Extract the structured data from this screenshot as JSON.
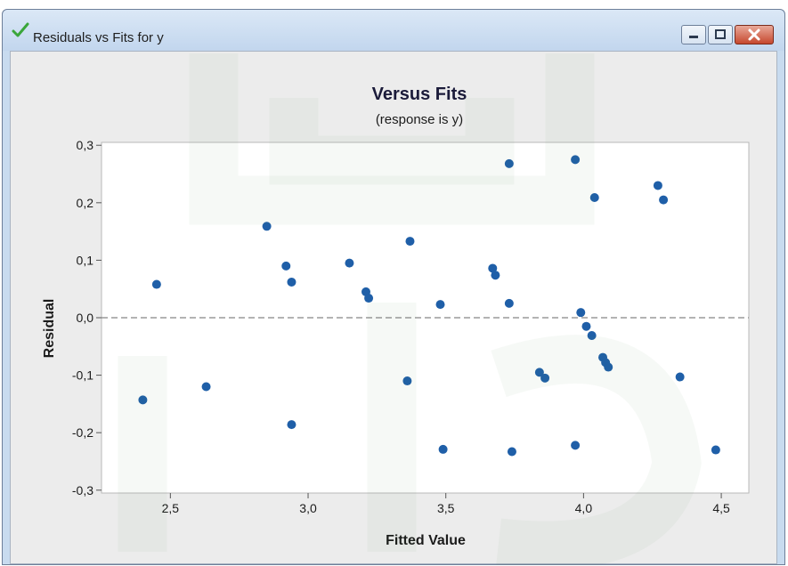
{
  "window": {
    "title": "Residuals vs Fits for y",
    "title_icon": "checkmark-icon",
    "buttons": [
      "minimize-icon",
      "maximize-icon",
      "close-icon"
    ]
  },
  "colors": {
    "points": "#1f5fa8",
    "zero_line": "#9a9a9a",
    "plot_bg": "#ffffff",
    "panel_bg": "#ececec"
  },
  "chart_data": {
    "type": "scatter",
    "title": "Versus Fits",
    "subtitle": "(response is y)",
    "xlabel": "Fitted Value",
    "ylabel": "Residual",
    "xlim": [
      2.25,
      4.6
    ],
    "ylim": [
      -0.305,
      0.305
    ],
    "xticks": [
      "2,5",
      "3,0",
      "3,5",
      "4,0",
      "4,5"
    ],
    "xtick_values": [
      2.5,
      3.0,
      3.5,
      4.0,
      4.5
    ],
    "yticks": [
      "0,3",
      "0,2",
      "0,1",
      "0,0",
      "-0,1",
      "-0,2",
      "-0,3"
    ],
    "ytick_values": [
      0.3,
      0.2,
      0.1,
      0.0,
      -0.1,
      -0.2,
      -0.3
    ],
    "reference_line": 0.0,
    "grid": false,
    "points": [
      {
        "x": 2.4,
        "y": -0.143
      },
      {
        "x": 2.45,
        "y": 0.058
      },
      {
        "x": 2.63,
        "y": -0.12
      },
      {
        "x": 2.85,
        "y": 0.159
      },
      {
        "x": 2.92,
        "y": 0.09
      },
      {
        "x": 2.94,
        "y": 0.062
      },
      {
        "x": 2.94,
        "y": -0.186
      },
      {
        "x": 3.15,
        "y": 0.095
      },
      {
        "x": 3.21,
        "y": 0.045
      },
      {
        "x": 3.22,
        "y": 0.034
      },
      {
        "x": 3.36,
        "y": -0.11
      },
      {
        "x": 3.37,
        "y": 0.133
      },
      {
        "x": 3.48,
        "y": 0.023
      },
      {
        "x": 3.49,
        "y": -0.229
      },
      {
        "x": 3.67,
        "y": 0.086
      },
      {
        "x": 3.68,
        "y": 0.074
      },
      {
        "x": 3.73,
        "y": 0.025
      },
      {
        "x": 3.73,
        "y": 0.268
      },
      {
        "x": 3.74,
        "y": -0.233
      },
      {
        "x": 3.84,
        "y": -0.095
      },
      {
        "x": 3.86,
        "y": -0.105
      },
      {
        "x": 3.97,
        "y": 0.275
      },
      {
        "x": 3.97,
        "y": -0.222
      },
      {
        "x": 3.99,
        "y": 0.009
      },
      {
        "x": 4.01,
        "y": -0.015
      },
      {
        "x": 4.03,
        "y": -0.031
      },
      {
        "x": 4.04,
        "y": 0.209
      },
      {
        "x": 4.07,
        "y": -0.069
      },
      {
        "x": 4.08,
        "y": -0.078
      },
      {
        "x": 4.09,
        "y": -0.086
      },
      {
        "x": 4.27,
        "y": 0.23
      },
      {
        "x": 4.29,
        "y": 0.205
      },
      {
        "x": 4.35,
        "y": -0.103
      },
      {
        "x": 4.48,
        "y": -0.23
      }
    ]
  }
}
